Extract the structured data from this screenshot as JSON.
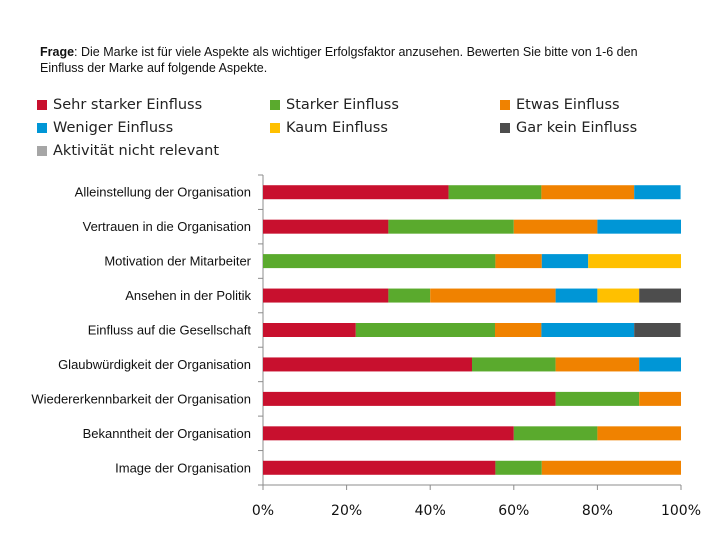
{
  "question": {
    "prefix": "Frage",
    "text": ": Die Marke ist für viele Aspekte als wichtiger Erfolgsfaktor anzusehen. Bewerten Sie bitte von 1-6 den Einfluss der Marke auf folgende Aspekte."
  },
  "chart_data": {
    "type": "bar",
    "orientation": "horizontal",
    "stacked": "percent",
    "xlim": [
      0,
      100
    ],
    "x_ticks": [
      "0%",
      "20%",
      "40%",
      "60%",
      "80%",
      "100%"
    ],
    "legend_position": "top",
    "grid": false,
    "categories": [
      "Alleinstellung der Organisation",
      "Vertrauen in die Organisation",
      "Motivation der Mitarbeiter",
      "Ansehen in der Politik",
      "Einfluss auf die Gesellschaft",
      "Glaubwürdigkeit der Organisation",
      "Wiedererkennbarkeit der Organisation",
      "Bekanntheit der Organisation",
      "Image der Organisation"
    ],
    "series": [
      {
        "name": "Sehr starker Einfluss",
        "color": "#C8102E",
        "values": [
          44.4,
          30,
          0,
          30,
          22.2,
          50,
          70,
          60,
          55.6
        ]
      },
      {
        "name": "Starker Einfluss",
        "color": "#5AAA2D",
        "values": [
          22.2,
          30,
          55.6,
          10,
          33.3,
          20,
          20,
          20,
          11.1
        ]
      },
      {
        "name": "Etwas Einfluss",
        "color": "#F08200",
        "values": [
          22.2,
          20,
          11.1,
          30,
          11.1,
          20,
          10,
          20,
          33.3
        ]
      },
      {
        "name": "Weniger Einfluss",
        "color": "#0096D6",
        "values": [
          11.1,
          20,
          11.1,
          10,
          22.2,
          10,
          0,
          0,
          0
        ]
      },
      {
        "name": "Kaum Einfluss",
        "color": "#FFC000",
        "values": [
          0,
          0,
          22.2,
          10,
          0,
          0,
          0,
          0,
          0
        ]
      },
      {
        "name": "Gar kein Einfluss",
        "color": "#4D4D4D",
        "values": [
          0,
          0,
          0,
          10,
          11.1,
          0,
          0,
          0,
          0
        ]
      },
      {
        "name": "Aktivität nicht relevant",
        "color": "#A6A6A6",
        "values": [
          0,
          0,
          0,
          0,
          0,
          0,
          0,
          0,
          0
        ]
      }
    ]
  }
}
